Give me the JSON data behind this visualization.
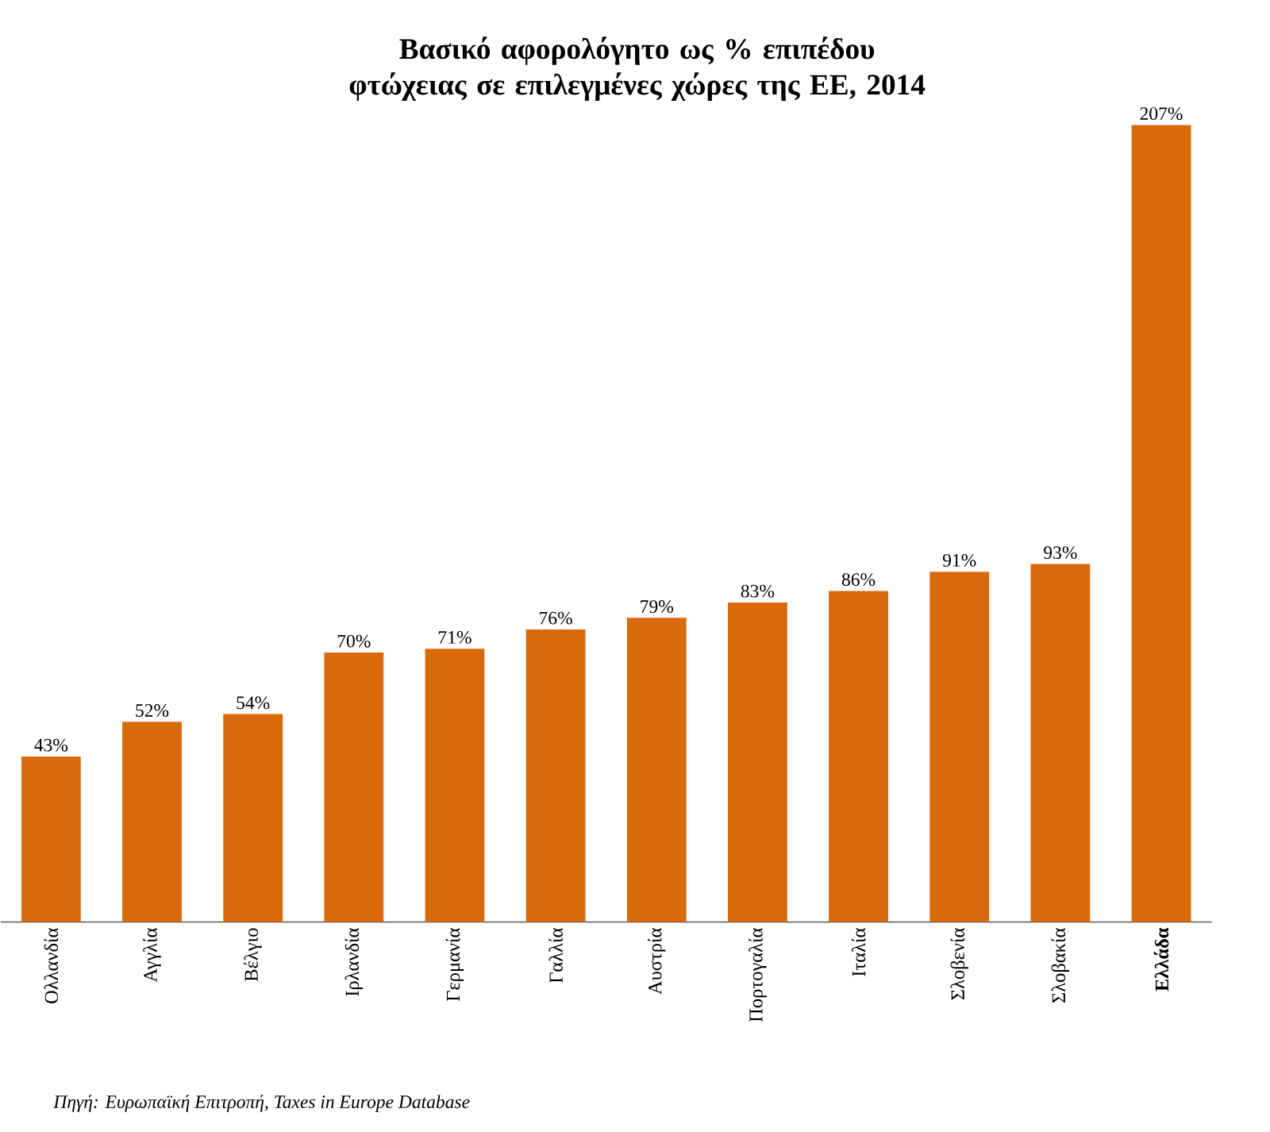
{
  "chart_data": {
    "type": "bar",
    "title": "Βασικό αφορολόγητο ως % επιπέδου φτώχειας σε επιλεγμένες χώρες της ΕΕ, 2014",
    "categories": [
      "Ολλανδία",
      "Αγγλία",
      "Βέλγιο",
      "Ιρλανδία",
      "Γερμανία",
      "Γαλλία",
      "Αυστρία",
      "Πορτογαλία",
      "Ιταλία",
      "Σλοβενία",
      "Σλοβακία",
      "**Ελλάδα**"
    ],
    "values": [
      43,
      52,
      54,
      70,
      71,
      76,
      79,
      83,
      86,
      91,
      93,
      207
    ],
    "value_labels": [
      "43%",
      "52%",
      "54%",
      "70%",
      "71%",
      "76%",
      "79%",
      "83%",
      "86%",
      "91%",
      "93%",
      "207%"
    ],
    "color": "#d9690b",
    "annotations": [
      "Πηγή: Ευρωπαϊκή Επιτροπή, Taxes in Europe Database"
    ]
  }
}
